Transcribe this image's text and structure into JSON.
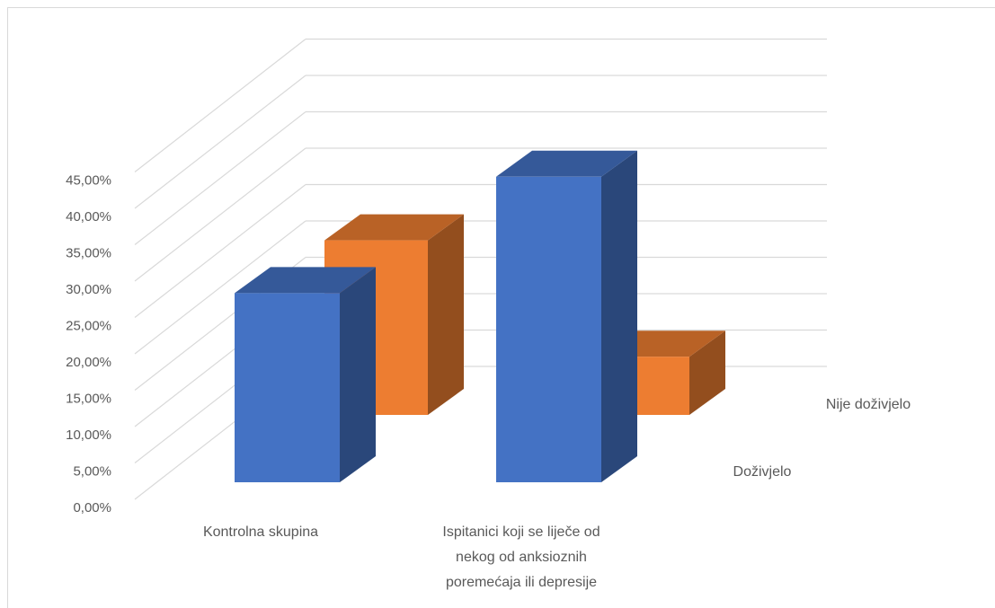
{
  "chart_data": {
    "type": "bar",
    "subtype": "3d-column",
    "title": "",
    "categories": [
      "Kontrolna skupina",
      "Ispitanici koji se liječe od nekog od anksioznih poremećaja ili depresije"
    ],
    "category_lines": [
      [
        "Kontrolna skupina"
      ],
      [
        "Ispitanici koji se liječe od",
        "nekog od anksioznih",
        "poremećaja ili depresije"
      ]
    ],
    "series": [
      {
        "name": "Doživjelo",
        "values": [
          0.26,
          0.42
        ],
        "color": "#4472c4"
      },
      {
        "name": "Nije doživjelo",
        "values": [
          0.24,
          0.08
        ],
        "color": "#ed7d31"
      }
    ],
    "y_ticks": [
      "0,00%",
      "5,00%",
      "10,00%",
      "15,00%",
      "20,00%",
      "25,00%",
      "30,00%",
      "35,00%",
      "40,00%",
      "45,00%"
    ],
    "ylim": [
      0,
      0.45
    ],
    "grid": true,
    "legend": "series labels on depth axis (right)"
  }
}
